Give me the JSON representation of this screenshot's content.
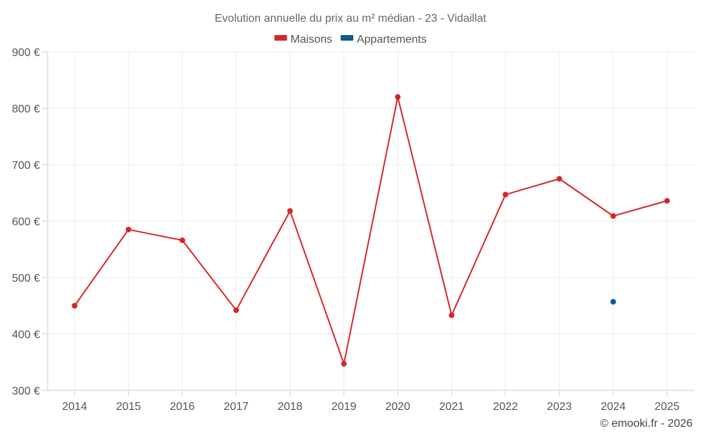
{
  "chart_data": {
    "type": "line",
    "title": "Evolution annuelle du prix au m² médian - 23 - Vidaillat",
    "categories": [
      "2014",
      "2015",
      "2016",
      "2017",
      "2018",
      "2019",
      "2020",
      "2021",
      "2022",
      "2023",
      "2024",
      "2025"
    ],
    "series": [
      {
        "name": "Maisons",
        "color": "#d62728",
        "values": [
          450,
          585,
          566,
          442,
          618,
          347,
          820,
          433,
          647,
          675,
          609,
          636
        ]
      },
      {
        "name": "Appartements",
        "color": "#0a5d91",
        "values": [
          null,
          null,
          null,
          null,
          null,
          null,
          null,
          null,
          null,
          null,
          457,
          null
        ]
      }
    ],
    "ylim": [
      300,
      900
    ],
    "yticks": [
      300,
      400,
      500,
      600,
      700,
      800,
      900
    ],
    "ytick_labels": [
      "300 €",
      "400 €",
      "500 €",
      "600 €",
      "700 €",
      "800 €",
      "900 €"
    ],
    "xlabel": "",
    "ylabel": "",
    "grid": true,
    "legend_position": "top-center"
  },
  "credit": "© emooki.fr - 2026"
}
